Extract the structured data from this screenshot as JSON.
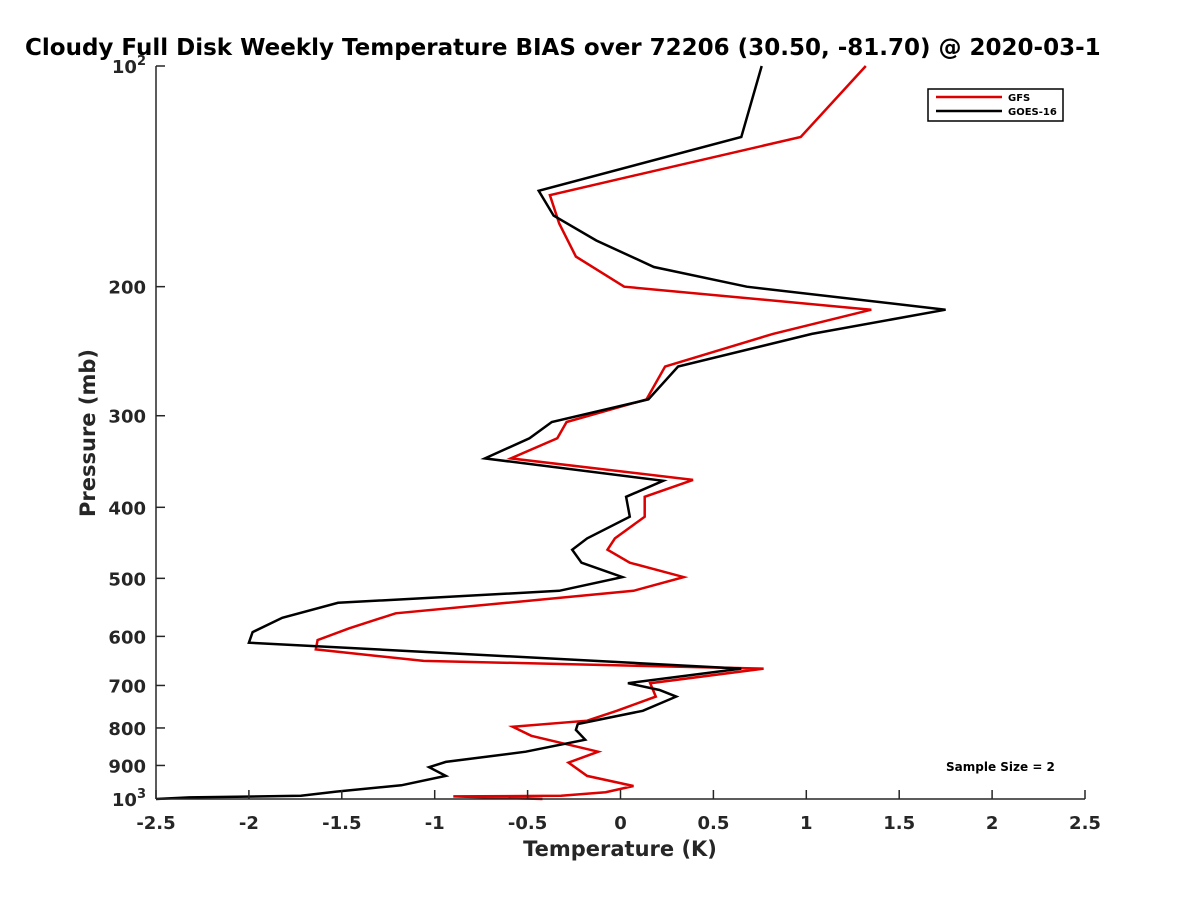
{
  "chart_data": {
    "type": "line",
    "title": "Cloudy Full Disk Weekly Temperature BIAS over 72206 (30.50, -81.70) @ 2020-03-1",
    "xlabel": "Temperature (K)",
    "ylabel": "Pressure (mb)",
    "xlim": [
      -2.5,
      2.5
    ],
    "ylim": [
      100,
      1000
    ],
    "y_scale": "log",
    "y_reversed": true,
    "x_ticks": [
      "-2.5",
      "-2",
      "-1.5",
      "-1",
      "-0.5",
      "0",
      "0.5",
      "1",
      "1.5",
      "2",
      "2.5"
    ],
    "y_ticks": [
      {
        "value": 100,
        "base": "10",
        "exp": "2"
      },
      {
        "value": 200,
        "label": "200"
      },
      {
        "value": 300,
        "label": "300"
      },
      {
        "value": 400,
        "label": "400"
      },
      {
        "value": 500,
        "label": "500"
      },
      {
        "value": 600,
        "label": "600"
      },
      {
        "value": 700,
        "label": "700"
      },
      {
        "value": 800,
        "label": "800"
      },
      {
        "value": 900,
        "label": "900"
      },
      {
        "value": 1000,
        "base": "10",
        "exp": "3"
      }
    ],
    "legend_position": "top-right",
    "annotation": "Sample Size = 2",
    "series": [
      {
        "name": "GFS",
        "color": "#dd0000",
        "points": [
          [
            1.32,
            100
          ],
          [
            0.97,
            125
          ],
          [
            -0.38,
            150
          ],
          [
            -0.33,
            164
          ],
          [
            -0.24,
            182
          ],
          [
            0.02,
            200
          ],
          [
            1.35,
            215
          ],
          [
            0.82,
            232
          ],
          [
            0.24,
            257
          ],
          [
            0.14,
            285
          ],
          [
            -0.29,
            306
          ],
          [
            -0.34,
            322
          ],
          [
            -0.59,
            343
          ],
          [
            0.39,
            367
          ],
          [
            0.13,
            387
          ],
          [
            0.13,
            412
          ],
          [
            -0.03,
            441
          ],
          [
            -0.07,
            457
          ],
          [
            0.05,
            476
          ],
          [
            0.34,
            498
          ],
          [
            0.07,
            520
          ],
          [
            -0.61,
            540
          ],
          [
            -1.21,
            558
          ],
          [
            -1.46,
            585
          ],
          [
            -1.63,
            607
          ],
          [
            -1.64,
            625
          ],
          [
            -1.06,
            648
          ],
          [
            0.77,
            664
          ],
          [
            0.16,
            695
          ],
          [
            0.19,
            725
          ],
          [
            -0.02,
            758
          ],
          [
            -0.18,
            782
          ],
          [
            -0.58,
            797
          ],
          [
            -0.48,
            820
          ],
          [
            -0.12,
            862
          ],
          [
            -0.28,
            892
          ],
          [
            -0.18,
            930
          ],
          [
            0.07,
            960
          ],
          [
            -0.08,
            979
          ],
          [
            -0.32,
            990
          ],
          [
            -0.9,
            992
          ],
          [
            -0.42,
            1000
          ]
        ]
      },
      {
        "name": "GOES-16",
        "color": "#000000",
        "points": [
          [
            0.76,
            100
          ],
          [
            0.65,
            125
          ],
          [
            -0.44,
            148
          ],
          [
            -0.36,
            160
          ],
          [
            -0.13,
            173
          ],
          [
            0.18,
            188
          ],
          [
            0.68,
            200
          ],
          [
            1.75,
            215
          ],
          [
            1.03,
            232
          ],
          [
            0.31,
            257
          ],
          [
            0.15,
            285
          ],
          [
            -0.37,
            306
          ],
          [
            -0.49,
            322
          ],
          [
            -0.73,
            343
          ],
          [
            0.23,
            368
          ],
          [
            0.03,
            387
          ],
          [
            0.05,
            412
          ],
          [
            -0.18,
            441
          ],
          [
            -0.26,
            457
          ],
          [
            -0.21,
            476
          ],
          [
            0.01,
            498
          ],
          [
            -0.33,
            520
          ],
          [
            -1.52,
            540
          ],
          [
            -1.82,
            566
          ],
          [
            -1.98,
            592
          ],
          [
            -2.0,
            612
          ],
          [
            -1.31,
            625
          ],
          [
            0.65,
            664
          ],
          [
            0.04,
            695
          ],
          [
            0.21,
            710
          ],
          [
            0.3,
            725
          ],
          [
            0.12,
            758
          ],
          [
            -0.23,
            790
          ],
          [
            -0.24,
            805
          ],
          [
            -0.19,
            830
          ],
          [
            -0.51,
            862
          ],
          [
            -0.94,
            890
          ],
          [
            -1.03,
            905
          ],
          [
            -0.94,
            930
          ],
          [
            -1.18,
            958
          ],
          [
            -1.53,
            977
          ],
          [
            -1.72,
            990
          ],
          [
            -2.32,
            995
          ],
          [
            -2.5,
            1000
          ]
        ]
      }
    ]
  }
}
